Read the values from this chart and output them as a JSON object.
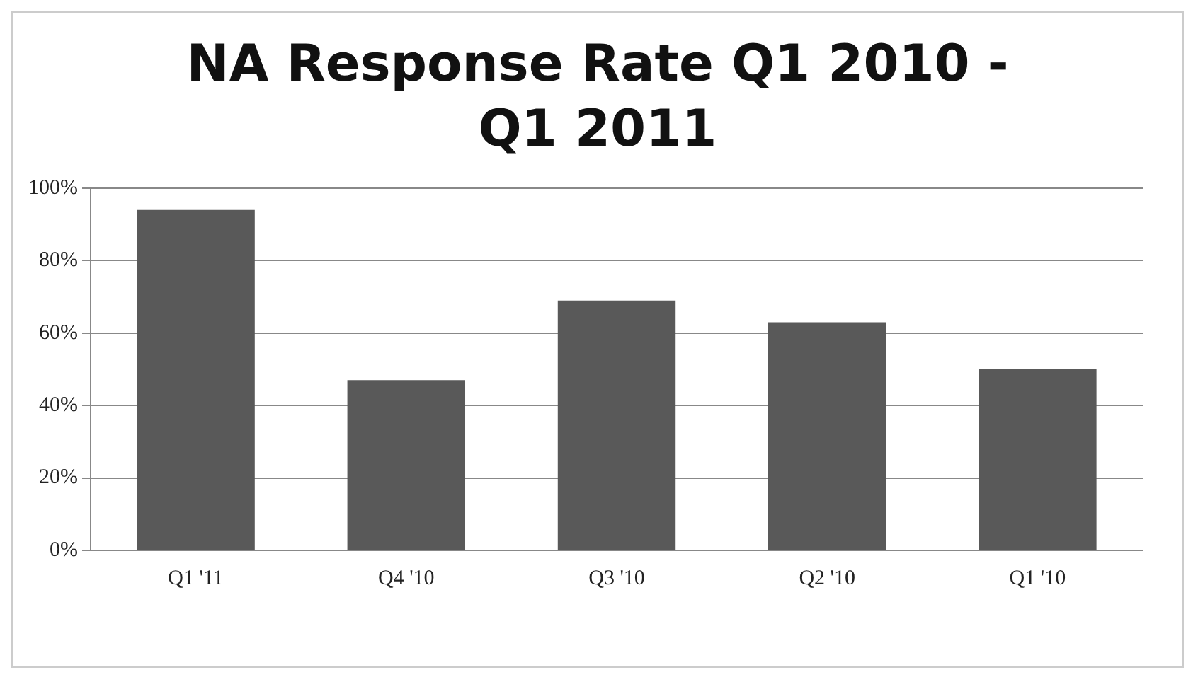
{
  "chart_data": {
    "type": "bar",
    "title": "NA Response Rate Q1 2010 - Q1 2011",
    "categories": [
      "Q1 '11",
      "Q4 '10",
      "Q3 '10",
      "Q2 '10",
      "Q1 '10"
    ],
    "values": [
      94,
      47,
      69,
      63,
      50
    ],
    "color": "#595959",
    "ylim": [
      0,
      100
    ],
    "yticks": [
      {
        "value": 0,
        "label": "0%"
      },
      {
        "value": 20,
        "label": "20%"
      },
      {
        "value": 40,
        "label": "40%"
      },
      {
        "value": 60,
        "label": "60%"
      },
      {
        "value": 80,
        "label": "80%"
      },
      {
        "value": 100,
        "label": "100%"
      }
    ],
    "grid": "y"
  }
}
